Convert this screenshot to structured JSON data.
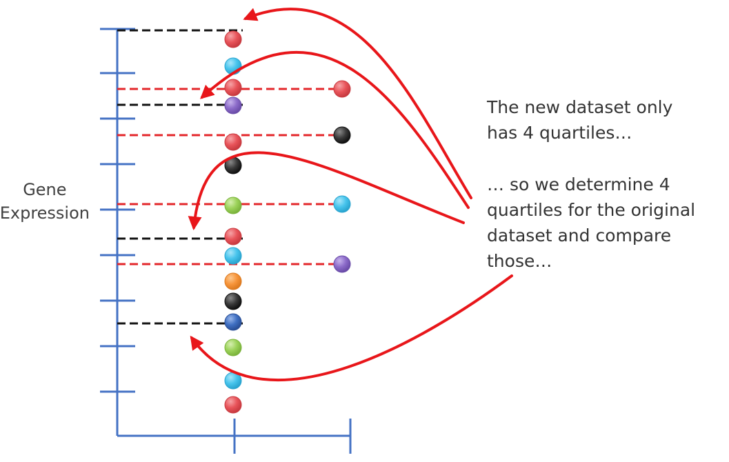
{
  "axis_label": {
    "line1": "Gene",
    "line2": "Expression"
  },
  "notes": {
    "note1": [
      "The new dataset only",
      "has 4 quartiles…"
    ],
    "note2": [
      "… so we determine 4",
      "quartiles for the original",
      "dataset and compare",
      "those…"
    ]
  },
  "colors": {
    "axis": "#4472c4",
    "black_dash": "#111111",
    "red_dash": "#e3262a",
    "arrow": "#e8161a",
    "dot_red": "#e8545a",
    "dot_cyan": "#47c4ec",
    "dot_purple": "#8c6bc9",
    "dot_black": "#3a3a3a",
    "dot_green": "#9cd25a",
    "dot_orange": "#f7953b",
    "dot_blue": "#3f6fc2"
  },
  "original_dataset_dots": [
    "red",
    "cyan",
    "red",
    "purple",
    "red",
    "black",
    "green",
    "red",
    "cyan",
    "orange",
    "black",
    "blue",
    "green",
    "cyan",
    "red"
  ],
  "new_dataset_dots": [
    "red",
    "black",
    "cyan",
    "purple"
  ],
  "original_quartile_line_count": 4,
  "new_quartile_line_count": 4
}
